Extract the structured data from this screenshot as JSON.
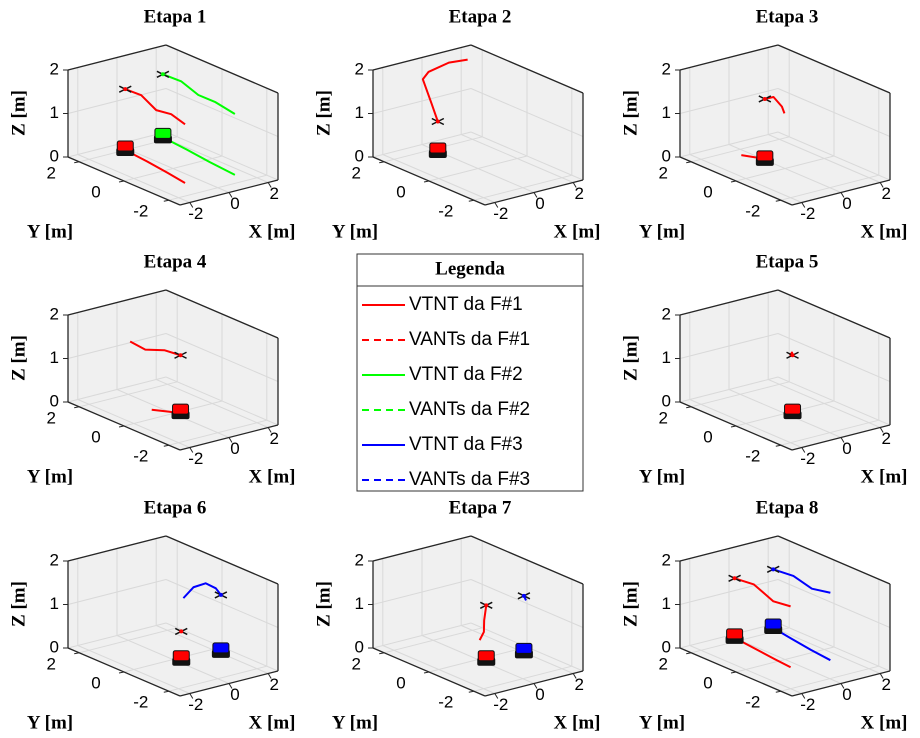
{
  "chart_data": [
    {
      "type": "line3d",
      "title": "Etapa 1",
      "xlabel": "X [m]",
      "ylabel": "Y [m]",
      "zlabel": "Z [m]",
      "xlim": [
        -2.5,
        2.5
      ],
      "ylim": [
        -2.5,
        2.5
      ],
      "zlim": [
        0,
        2
      ],
      "xticks": [
        -2,
        0,
        2
      ],
      "yticks": [
        -2,
        0,
        2
      ],
      "zticks": [
        0,
        1,
        2
      ],
      "grid": true,
      "series": [
        {
          "name": "VTNT da F#1",
          "x": [
            -0.15,
            -0.3,
            -0.5,
            -0.7
          ],
          "y": [
            2.0,
            0.9,
            -0.2,
            -1.15
          ],
          "z": [
            0,
            0,
            0,
            0
          ]
        },
        {
          "name": "VANTs da F#1",
          "x": [
            -0.15,
            -0.25,
            -0.4,
            -0.55,
            -0.7
          ],
          "y": [
            2.0,
            1.2,
            0.4,
            -0.4,
            -1.15
          ],
          "z": [
            1.4,
            1.45,
            1.3,
            1.4,
            1.35
          ]
        },
        {
          "name": "VTNT da F#2",
          "x": [
            2.0,
            1.85,
            1.65,
            1.5
          ],
          "y": [
            2.2,
            1.0,
            -0.2,
            -1.45
          ],
          "z": [
            0,
            0,
            0,
            0
          ]
        },
        {
          "name": "VANTs da F#2",
          "x": [
            2.0,
            1.9,
            1.75,
            1.6,
            1.5
          ],
          "y": [
            2.2,
            1.3,
            0.4,
            -0.5,
            -1.45
          ],
          "z": [
            1.45,
            1.5,
            1.4,
            1.45,
            1.4
          ]
        }
      ]
    },
    {
      "type": "line3d",
      "title": "Etapa 2",
      "xlabel": "X [m]",
      "ylabel": "Y [m]",
      "zlabel": "Z [m]",
      "xlim": [
        -2.5,
        2.5
      ],
      "ylim": [
        -2.5,
        2.5
      ],
      "zlim": [
        0,
        2
      ],
      "xticks": [
        -2,
        0,
        2
      ],
      "yticks": [
        -2,
        0,
        2
      ],
      "zticks": [
        0,
        1,
        2
      ],
      "grid": true,
      "series": [
        {
          "name": "VTNT da F#1",
          "x": [
            -0.05
          ],
          "y": [
            1.75
          ],
          "z": [
            0
          ]
        },
        {
          "name": "VANTs da F#1",
          "x": [
            -0.05,
            -0.2,
            -0.3,
            0.1,
            0.8,
            1.3
          ],
          "y": [
            1.75,
            1.9,
            2.2,
            2.3,
            2.0,
            1.6
          ],
          "z": [
            0.7,
            1.1,
            1.6,
            1.7,
            1.9,
            2.0
          ]
        }
      ]
    },
    {
      "type": "line3d",
      "title": "Etapa 3",
      "xlabel": "X [m]",
      "ylabel": "Y [m]",
      "zlabel": "Z [m]",
      "xlim": [
        -2.5,
        2.5
      ],
      "ylim": [
        -2.5,
        2.5
      ],
      "zlim": [
        0,
        2
      ],
      "xticks": [
        -2,
        0,
        2
      ],
      "yticks": [
        -2,
        0,
        2
      ],
      "zticks": [
        0,
        1,
        2
      ],
      "grid": true,
      "series": [
        {
          "name": "VTNT da F#1",
          "x": [
            0,
            -0.1,
            -0.4
          ],
          "y": [
            0.9,
            1.2,
            1.6
          ],
          "z": [
            0,
            0,
            0
          ]
        },
        {
          "name": "VANTs da F#1",
          "x": [
            0,
            0.1,
            0.3,
            0.2
          ],
          "y": [
            0.9,
            0.6,
            0.4,
            0.2
          ],
          "z": [
            1.4,
            1.5,
            1.3,
            1.2
          ]
        }
      ]
    },
    {
      "type": "line3d",
      "title": "Etapa 4",
      "xlabel": "X [m]",
      "ylabel": "Y [m]",
      "zlabel": "Z [m]",
      "xlim": [
        -2.5,
        2.5
      ],
      "ylim": [
        -2.5,
        2.5
      ],
      "zlim": [
        0,
        2
      ],
      "xticks": [
        -2,
        0,
        2
      ],
      "yticks": [
        -2,
        0,
        2
      ],
      "zticks": [
        0,
        1,
        2
      ],
      "grid": true,
      "series": [
        {
          "name": "VTNT da F#1",
          "x": [
            0.27,
            0,
            -0.4
          ],
          "y": [
            -0.1,
            0.2,
            0.6
          ],
          "z": [
            0,
            0,
            0
          ]
        },
        {
          "name": "VANTs da F#1",
          "x": [
            0.27,
            -0.1,
            -0.5,
            -0.7
          ],
          "y": [
            -0.1,
            0.3,
            0.8,
            1.3
          ],
          "z": [
            1.33,
            1.4,
            1.35,
            1.45
          ]
        }
      ]
    },
    {
      "type": "line3d",
      "title": "Etapa 5",
      "xlabel": "X [m]",
      "ylabel": "Y [m]",
      "zlabel": "Z [m]",
      "xlim": [
        -2.5,
        2.5
      ],
      "ylim": [
        -2.5,
        2.5
      ],
      "zlim": [
        0,
        2
      ],
      "xticks": [
        -2,
        0,
        2
      ],
      "yticks": [
        -2,
        0,
        2
      ],
      "zticks": [
        0,
        1,
        2
      ],
      "grid": true,
      "series": [
        {
          "name": "VTNT da F#1",
          "x": [
            0.27
          ],
          "y": [
            -0.1
          ],
          "z": [
            0
          ]
        },
        {
          "name": "VANTs da F#1",
          "x": [
            0.27,
            0.3,
            0.25
          ],
          "y": [
            -0.1,
            -0.05,
            0.0
          ],
          "z": [
            1.33,
            1.38,
            1.3
          ]
        }
      ]
    },
    {
      "type": "line3d",
      "title": "Etapa 6",
      "xlabel": "X [m]",
      "ylabel": "Y [m]",
      "zlabel": "Z [m]",
      "xlim": [
        -2.5,
        2.5
      ],
      "ylim": [
        -2.5,
        2.5
      ],
      "zlim": [
        0,
        2
      ],
      "xticks": [
        -2,
        0,
        2
      ],
      "yticks": [
        -2,
        0,
        2
      ],
      "zticks": [
        0,
        1,
        2
      ],
      "grid": true,
      "series": [
        {
          "name": "VTNT da F#1",
          "x": [
            0.25
          ],
          "y": [
            -0.15
          ],
          "z": [
            0
          ]
        },
        {
          "name": "VANTs da F#1",
          "x": [
            0.25
          ],
          "y": [
            -0.15
          ],
          "z": [
            0.65
          ]
        },
        {
          "name": "VTNT da F#3",
          "x": [
            2.1
          ],
          "y": [
            -0.3
          ],
          "z": [
            0
          ]
        },
        {
          "name": "VANTs da F#3",
          "x": [
            2.1,
            2.3,
            2.35,
            1.5,
            0.53
          ],
          "y": [
            -0.3,
            0.1,
            0.6,
            0.4,
            0.0
          ],
          "z": [
            1.31,
            1.35,
            1.35,
            1.4,
            1.35
          ]
        }
      ]
    },
    {
      "type": "line3d",
      "title": "Etapa 7",
      "xlabel": "X [m]",
      "ylabel": "Y [m]",
      "zlabel": "Z [m]",
      "xlim": [
        -2.5,
        2.5
      ],
      "ylim": [
        -2.5,
        2.5
      ],
      "zlim": [
        0,
        2
      ],
      "xticks": [
        -2,
        0,
        2
      ],
      "yticks": [
        -2,
        0,
        2
      ],
      "zticks": [
        0,
        1,
        2
      ],
      "grid": true,
      "series": [
        {
          "name": "VTNT da F#1",
          "x": [
            0.25
          ],
          "y": [
            -0.15
          ],
          "z": [
            0
          ]
        },
        {
          "name": "VANTs da F#1",
          "x": [
            0.25,
            0.2,
            0.3,
            0.2
          ],
          "y": [
            -0.15,
            -0.1,
            0,
            0.1
          ],
          "z": [
            1.25,
            0.9,
            0.6,
            0.4
          ]
        },
        {
          "name": "VTNT da F#3",
          "x": [
            2.0
          ],
          "y": [
            -0.3
          ],
          "z": [
            0
          ]
        },
        {
          "name": "VANTs da F#3",
          "x": [
            2.0,
            2.05
          ],
          "y": [
            -0.3,
            -0.35
          ],
          "z": [
            1.3,
            1.2
          ]
        }
      ]
    },
    {
      "type": "line3d",
      "title": "Etapa 8",
      "xlabel": "X [m]",
      "ylabel": "Y [m]",
      "zlabel": "Z [m]",
      "xlim": [
        -2.5,
        2.5
      ],
      "ylim": [
        -2.5,
        2.5
      ],
      "zlim": [
        0,
        2
      ],
      "xticks": [
        -2,
        0,
        2
      ],
      "yticks": [
        -2,
        0,
        2
      ],
      "zticks": [
        0,
        1,
        2
      ],
      "grid": true,
      "series": [
        {
          "name": "VTNT da F#1",
          "x": [
            0,
            -0.15,
            -0.3,
            -0.4
          ],
          "y": [
            2.25,
            1.2,
            0.2,
            -0.6
          ],
          "z": [
            0,
            0,
            0,
            0
          ]
        },
        {
          "name": "VANTs da F#1",
          "x": [
            0,
            -0.1,
            -0.25,
            -0.4
          ],
          "y": [
            2.25,
            1.3,
            0.3,
            -0.6
          ],
          "z": [
            1.37,
            1.45,
            1.3,
            1.4
          ]
        },
        {
          "name": "VTNT da F#3",
          "x": [
            1.97,
            1.75,
            1.55,
            1.4
          ],
          "y": [
            2.25,
            1.2,
            0.2,
            -0.8
          ],
          "z": [
            0,
            0,
            0,
            0
          ]
        },
        {
          "name": "VANTs da F#3",
          "x": [
            1.97,
            1.8,
            1.6,
            1.4
          ],
          "y": [
            2.25,
            1.2,
            0.2,
            -0.8
          ],
          "z": [
            1.35,
            1.45,
            1.4,
            1.55
          ]
        }
      ]
    }
  ],
  "legend": {
    "title": "Legenda",
    "entries": [
      {
        "name": "VTNT da F#1",
        "color": "#ff0000",
        "style": "solid"
      },
      {
        "name": "VANTs da F#1",
        "color": "#ff0000",
        "style": "dashed"
      },
      {
        "name": "VTNT da F#2",
        "color": "#00ff00",
        "style": "solid"
      },
      {
        "name": "VANTs da F#2",
        "color": "#00ff00",
        "style": "dashed"
      },
      {
        "name": "VTNT da F#3",
        "color": "#0000ff",
        "style": "solid"
      },
      {
        "name": "VANTs da F#3",
        "color": "#0000ff",
        "style": "dashed"
      }
    ]
  }
}
